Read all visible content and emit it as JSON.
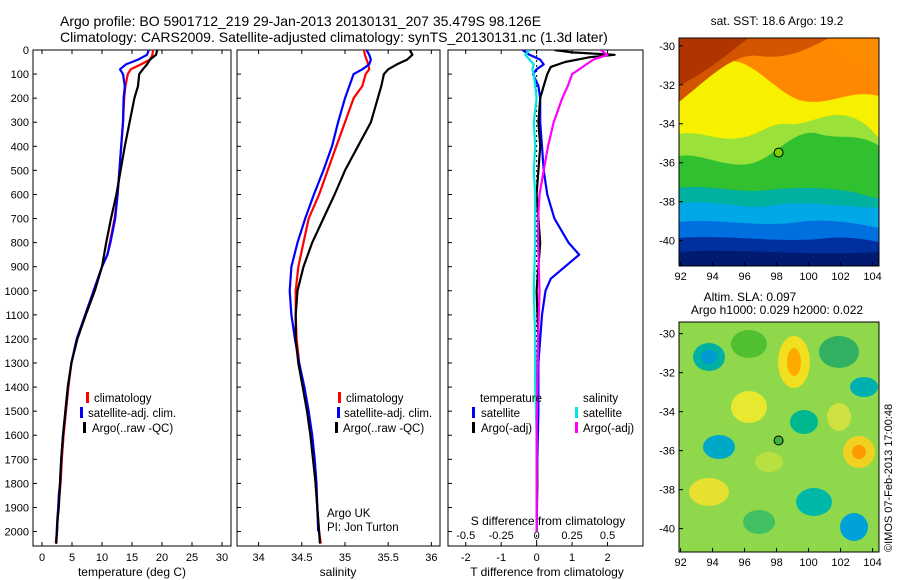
{
  "header": {
    "line1": "Argo profile: BO 5901712_219 29-Jan-2013 20130131_207 35.479S 98.126E",
    "line2": "Climatology: CARS2009. Satellite-adjusted climatology: synTS_20130131.nc (1.3d later)"
  },
  "colors": {
    "climatology": "#ff0000",
    "satellite": "#0000ff",
    "argo": "#000000",
    "sat_salinity": "#00e5e5",
    "argo_salinity": "#ff00ff"
  },
  "chart_data": [
    {
      "type": "line",
      "xlabel": "temperature (deg C)",
      "ylabel": "",
      "xlim": [
        -1.5,
        31.5
      ],
      "ylim": [
        2060,
        0
      ],
      "xticks": [
        "0",
        "5",
        "10",
        "15",
        "20",
        "25",
        "30"
      ],
      "yticks": [
        "0",
        "100",
        "200",
        "300",
        "400",
        "500",
        "600",
        "700",
        "800",
        "900",
        "1000",
        "1100",
        "1200",
        "1300",
        "1400",
        "1500",
        "1600",
        "1700",
        "1800",
        "1900",
        "2000"
      ],
      "legend": {
        "placement": "lower-center",
        "entries": [
          "climatology",
          "satellite-adj. clim.",
          "Argo(..raw -QC)"
        ]
      },
      "series": [
        {
          "name": "climatology",
          "color": "#ff0000",
          "x": [
            18.5,
            18.4,
            18.0,
            16.5,
            14.8,
            14.3,
            13.9,
            13.7,
            13.5,
            13.2,
            12.9,
            12.6,
            12.1,
            11.7,
            11.3,
            10.9,
            10.0,
            8.6,
            7.2,
            5.8,
            4.9,
            4.4,
            4.0,
            3.6,
            3.3,
            3.1,
            2.9,
            2.75,
            2.6,
            2.5,
            2.4,
            2.3
          ],
          "y": [
            0,
            20,
            40,
            60,
            80,
            100,
            150,
            200,
            300,
            400,
            500,
            600,
            700,
            750,
            800,
            850,
            900,
            1000,
            1100,
            1200,
            1300,
            1400,
            1500,
            1600,
            1700,
            1800,
            1850,
            1900,
            1950,
            2000,
            2020,
            2050
          ]
        },
        {
          "name": "satellite-adj. clim.",
          "color": "#0000ff",
          "x": [
            17.8,
            17.5,
            16.0,
            14.0,
            13.0,
            13.5,
            13.8,
            13.6,
            13.5,
            13.2,
            12.9,
            12.6,
            12.2,
            11.8,
            11.4,
            10.9,
            10.0,
            8.6,
            7.2,
            5.8,
            4.9,
            4.3,
            3.9,
            3.5,
            3.2,
            3.0,
            2.8,
            2.7,
            2.55,
            2.45,
            2.4
          ],
          "y": [
            0,
            20,
            40,
            60,
            80,
            100,
            150,
            200,
            300,
            400,
            500,
            600,
            700,
            750,
            800,
            850,
            900,
            1000,
            1100,
            1200,
            1300,
            1400,
            1500,
            1600,
            1700,
            1800,
            1850,
            1900,
            1950,
            2000,
            2050
          ]
        },
        {
          "name": "Argo(..raw -QC)",
          "color": "#000000",
          "x": [
            19.2,
            19.0,
            18.0,
            17.5,
            16.8,
            16.2,
            16.0,
            15.4,
            14.6,
            13.8,
            13.1,
            12.4,
            11.5,
            10.7,
            10.0,
            8.8,
            7.3,
            5.9,
            4.9,
            4.3,
            3.9,
            3.5,
            3.2,
            3.0,
            2.8,
            2.6,
            2.5,
            2.4,
            2.4
          ],
          "y": [
            0,
            20,
            40,
            60,
            80,
            100,
            150,
            200,
            300,
            400,
            500,
            600,
            700,
            800,
            900,
            1000,
            1100,
            1200,
            1300,
            1400,
            1500,
            1600,
            1700,
            1800,
            1900,
            1950,
            2000,
            2030,
            2050
          ]
        }
      ]
    },
    {
      "type": "line",
      "xlabel": "salinity",
      "ylabel": "",
      "xlim": [
        33.75,
        36.1
      ],
      "ylim": [
        2060,
        0
      ],
      "xticks": [
        "34",
        "34.5",
        "35",
        "35.5",
        "36"
      ],
      "annotation": [
        "Argo UK",
        "PI: Jon Turton"
      ],
      "legend": {
        "placement": "lower-right",
        "entries": [
          "climatology",
          "satellite-adj. clim.",
          "Argo(..raw -QC)"
        ]
      },
      "series": [
        {
          "name": "climatology",
          "color": "#ff0000",
          "x": [
            35.22,
            35.23,
            35.25,
            35.27,
            35.28,
            35.24,
            35.2,
            35.1,
            35.0,
            34.9,
            34.8,
            34.7,
            34.58,
            34.52,
            34.46,
            34.43,
            34.43,
            34.44,
            34.47,
            34.52,
            34.57,
            34.61,
            34.64,
            34.66,
            34.68,
            34.7,
            34.72
          ],
          "y": [
            0,
            20,
            40,
            60,
            80,
            100,
            150,
            200,
            300,
            400,
            500,
            600,
            700,
            800,
            900,
            1000,
            1100,
            1200,
            1300,
            1400,
            1500,
            1600,
            1700,
            1800,
            1900,
            2000,
            2050
          ]
        },
        {
          "name": "satellite-adj. clim.",
          "color": "#0000ff",
          "x": [
            35.25,
            35.28,
            35.3,
            35.28,
            35.2,
            35.1,
            35.05,
            35.0,
            34.92,
            34.85,
            34.75,
            34.64,
            34.54,
            34.45,
            34.38,
            34.36,
            34.38,
            34.42,
            34.47,
            34.53,
            34.58,
            34.62,
            34.65,
            34.67,
            34.68,
            34.69
          ],
          "y": [
            0,
            20,
            40,
            60,
            80,
            100,
            150,
            200,
            300,
            400,
            500,
            600,
            700,
            800,
            900,
            1000,
            1100,
            1200,
            1300,
            1400,
            1500,
            1600,
            1700,
            1800,
            1900,
            2000
          ]
        },
        {
          "name": "Argo(..raw -QC)",
          "color": "#000000",
          "x": [
            35.75,
            35.78,
            35.72,
            35.6,
            35.5,
            35.45,
            35.42,
            35.38,
            35.3,
            35.15,
            35.0,
            34.88,
            34.75,
            34.62,
            34.52,
            34.45,
            34.43,
            34.43,
            34.46,
            34.51,
            34.56,
            34.6,
            34.63,
            34.66,
            34.68,
            34.7,
            34.71
          ],
          "y": [
            0,
            20,
            40,
            60,
            80,
            100,
            150,
            200,
            300,
            400,
            500,
            600,
            700,
            800,
            900,
            1000,
            1100,
            1200,
            1300,
            1400,
            1500,
            1600,
            1700,
            1800,
            1900,
            2000,
            2050
          ]
        }
      ]
    },
    {
      "type": "line",
      "xlabel": "T difference from climatology",
      "top_axis_label": "S difference from climatology",
      "xlim": [
        -2.5,
        3.0
      ],
      "ylim": [
        2060,
        0
      ],
      "xticks": [
        "-2",
        "-1",
        "0",
        "1",
        "2"
      ],
      "top_ticks": [
        "-0.5",
        "-0.25",
        "0",
        "0.25",
        "0.5"
      ],
      "legend": {
        "placement": "lower-center",
        "headers": [
          "temperature",
          "salinity"
        ],
        "entries": [
          "satellite",
          "Argo(-adj)",
          "satellite",
          "Argo(-adj)"
        ]
      },
      "series": [
        {
          "name": "temperature satellite",
          "color": "#0000ff",
          "x": [
            -0.4,
            -0.2,
            0.1,
            0.2,
            0.0,
            -0.1,
            0.05,
            0.1,
            0.1,
            0.15,
            0.2,
            0.3,
            0.5,
            0.9,
            1.2,
            0.8,
            0.4,
            0.25,
            0.15,
            0.1,
            0.05,
            0.05,
            0.05,
            0.02,
            0.0
          ],
          "y": [
            0,
            20,
            40,
            60,
            80,
            100,
            150,
            200,
            300,
            400,
            500,
            600,
            700,
            800,
            850,
            900,
            950,
            1000,
            1100,
            1200,
            1300,
            1400,
            1500,
            1700,
            2000
          ]
        },
        {
          "name": "temperature Argo(-adj)",
          "color": "#000000",
          "x": [
            0.5,
            1.0,
            2.2,
            1.5,
            0.8,
            0.4,
            0.3,
            0.2,
            0.1,
            0.05,
            0.1,
            0.05,
            0.0,
            0.05,
            0.1,
            0.05,
            0.0,
            0.05,
            0.0,
            0.0,
            0.02,
            0.0
          ],
          "y": [
            0,
            10,
            20,
            30,
            50,
            70,
            100,
            150,
            200,
            300,
            400,
            500,
            600,
            700,
            800,
            900,
            1000,
            1200,
            1400,
            1600,
            1800,
            2000
          ]
        },
        {
          "name": "salinity satellite",
          "color": "#00e5e5",
          "x": [
            -0.05,
            -0.08,
            -0.05,
            -0.02,
            -0.03,
            -0.02,
            -0.01,
            0.0,
            -0.02,
            -0.01,
            -0.02,
            -0.01,
            -0.01,
            -0.02,
            -0.01,
            -0.01,
            0.0,
            0.0,
            0.0
          ],
          "y": [
            0,
            20,
            40,
            60,
            80,
            100,
            150,
            200,
            300,
            400,
            500,
            600,
            800,
            1000,
            1200,
            1400,
            1600,
            1800,
            2000
          ]
        },
        {
          "name": "salinity Argo(-adj)",
          "color": "#ff00ff",
          "x": [
            0.45,
            0.5,
            0.4,
            0.35,
            0.3,
            0.25,
            0.22,
            0.18,
            0.12,
            0.08,
            0.05,
            0.02,
            0.01,
            0.01,
            0.02,
            0.01,
            0.0,
            0.0
          ],
          "y": [
            0,
            20,
            40,
            60,
            80,
            100,
            150,
            200,
            300,
            400,
            500,
            600,
            700,
            800,
            1000,
            1200,
            1600,
            2000
          ]
        }
      ]
    },
    {
      "type": "heatmap",
      "title": "sat. SST: 18.6 Argo: 19.2",
      "xlim": [
        91.9,
        104.4
      ],
      "ylim": [
        -41.3,
        -29.6
      ],
      "xticks": [
        "92",
        "94",
        "96",
        "98",
        "100",
        "102",
        "104"
      ],
      "yticks": [
        "-30",
        "-32",
        "-34",
        "-36",
        "-38",
        "-40"
      ],
      "marker": {
        "lon": 98.126,
        "lat": -35.479
      }
    },
    {
      "type": "heatmap",
      "title": "Altim. SLA: 0.097",
      "subtitle": "Argo h1000: 0.029 h2000: 0.022",
      "xlim": [
        91.9,
        104.4
      ],
      "ylim": [
        -41.2,
        -29.4
      ],
      "xticks": [
        "92",
        "94",
        "96",
        "98",
        "100",
        "102",
        "104"
      ],
      "yticks": [
        "-30",
        "-32",
        "-34",
        "-36",
        "-38",
        "-40"
      ],
      "marker": {
        "lon": 98.126,
        "lat": -35.479
      }
    }
  ],
  "side_note": "©IMOS 07-Feb-2013 17:00:48"
}
